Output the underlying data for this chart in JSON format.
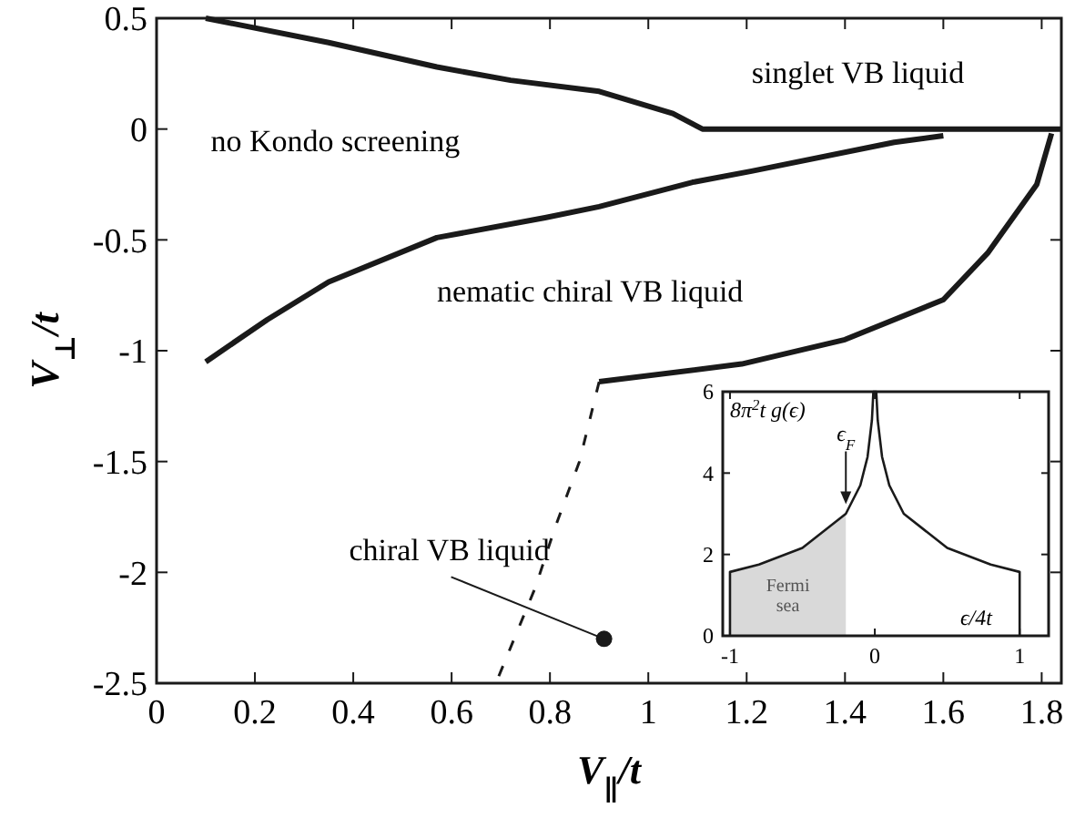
{
  "chart_data": [
    {
      "type": "line",
      "xlabel": "V$_{∥}$/t",
      "ylabel": "V$_{⊥}$/t",
      "xlim": [
        0,
        1.84
      ],
      "ylim": [
        -2.5,
        0.5
      ],
      "xticks": [
        0,
        0.2,
        0.4,
        0.6,
        0.8,
        1,
        1.2,
        1.4,
        1.6,
        1.8
      ],
      "yticks": [
        -2.5,
        -2,
        -1.5,
        -1,
        -0.5,
        0,
        0.5
      ],
      "grid": false,
      "annotations": [
        "no Kondo screening",
        "singlet VB liquid",
        "nematic chiral VB liquid",
        {
          "text": "chiral VB liquid",
          "x": 0.91,
          "y": -2.3
        }
      ],
      "series": [
        {
          "color": "#1a1a1a",
          "line_style": "solid",
          "x": [
            0.1,
            0.35,
            0.57,
            0.72,
            0.9,
            1.05,
            1.11,
            1.84
          ],
          "values": [
            0.5,
            0.39,
            0.28,
            0.22,
            0.17,
            0.07,
            0,
            0
          ]
        },
        {
          "color": "#1a1a1a",
          "line_style": "solid",
          "x": [
            0.1,
            0.225,
            0.35,
            0.57,
            0.79,
            0.9,
            1.09,
            1.21,
            1.5,
            1.6
          ],
          "values": [
            -1.05,
            -0.86,
            -0.69,
            -0.49,
            -0.4,
            -0.35,
            -0.24,
            -0.19,
            -0.06,
            -0.03
          ]
        },
        {
          "color": "#1a1a1a",
          "line_style": "solid",
          "x": [
            0.9,
            1.19,
            1.4,
            1.6,
            1.69,
            1.79,
            1.82
          ],
          "values": [
            -1.14,
            -1.06,
            -0.95,
            -0.77,
            -0.56,
            -0.25,
            -0.02
          ]
        },
        {
          "color": "#1a1a1a",
          "line_style": "dashed",
          "x": [
            0.9,
            0.86,
            0.81,
            0.77,
            0.69
          ],
          "values": [
            -1.14,
            -1.5,
            -1.8,
            -2.07,
            -2.5
          ]
        },
        {
          "type": "scatter",
          "color": "#1a1a1a",
          "marker": "circle",
          "x": [
            0.91
          ],
          "values": [
            -2.3
          ]
        }
      ]
    },
    {
      "type": "line",
      "xlabel": "ϵ/4t",
      "ylabel": "8π$^{2}$t g(ϵ)",
      "xlim": [
        -1.05,
        1.2
      ],
      "ylim": [
        0,
        6
      ],
      "xticks": [
        -1,
        0,
        1
      ],
      "yticks": [
        0,
        2,
        4,
        6
      ],
      "grid": false,
      "annotations": [
        "Fermi sea",
        {
          "text": "ϵ$_{F}$",
          "x": -0.2,
          "y": 3.1
        }
      ],
      "series": [
        {
          "type": "area",
          "color": "#d9d9d9",
          "x": [
            -1,
            -0.8,
            -0.5,
            -0.2
          ],
          "values": [
            1.57,
            1.75,
            2.16,
            3.0
          ]
        },
        {
          "color": "#1a1a1a",
          "line_style": "solid",
          "x": [
            -1,
            -1,
            -0.8,
            -0.5,
            -0.2,
            -0.1,
            -0.05,
            -0.02,
            -0.01,
            0.01,
            0.02,
            0.05,
            0.1,
            0.2,
            0.5,
            0.8,
            1,
            1
          ],
          "values": [
            0,
            1.57,
            1.75,
            2.16,
            3.0,
            3.7,
            4.4,
            5.3,
            6,
            6,
            5.3,
            4.4,
            3.7,
            3.0,
            2.16,
            1.75,
            1.57,
            0
          ]
        }
      ]
    }
  ]
}
